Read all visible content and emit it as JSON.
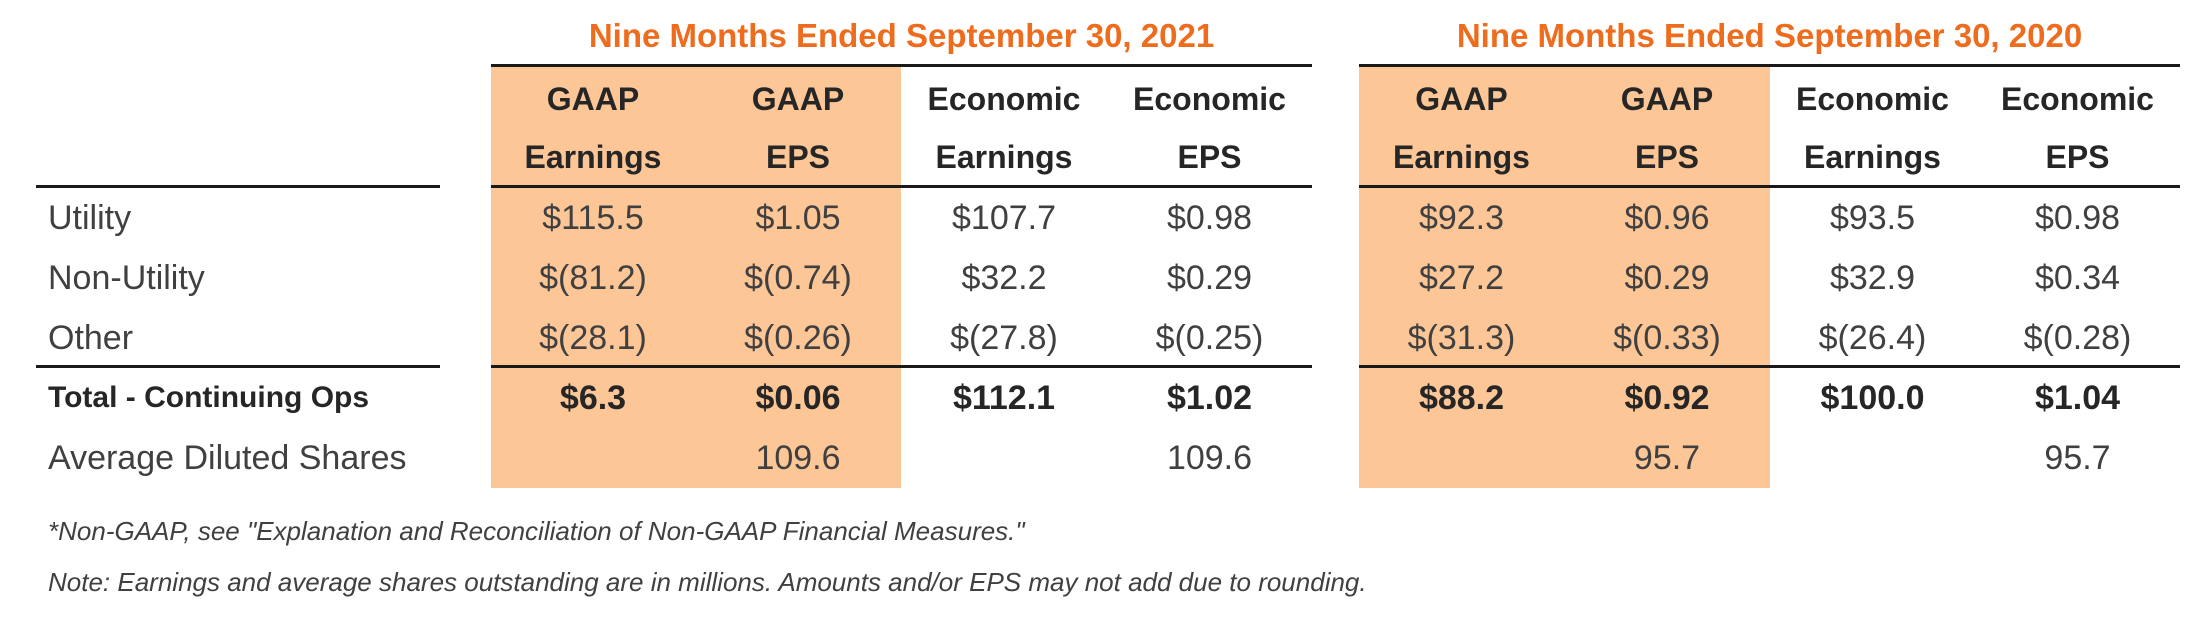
{
  "periods": [
    {
      "title": "Nine Months Ended September 30, 2021",
      "columns": [
        {
          "line1": "GAAP",
          "line2": "Earnings"
        },
        {
          "line1": "GAAP",
          "line2": "EPS"
        },
        {
          "line1": "Economic",
          "line2": "Earnings"
        },
        {
          "line1": "Economic",
          "line2": "EPS"
        }
      ]
    },
    {
      "title": "Nine Months Ended September 30, 2020",
      "columns": [
        {
          "line1": "GAAP",
          "line2": "Earnings"
        },
        {
          "line1": "GAAP",
          "line2": "EPS"
        },
        {
          "line1": "Economic",
          "line2": "Earnings"
        },
        {
          "line1": "Economic",
          "line2": "EPS"
        }
      ]
    }
  ],
  "rows": [
    {
      "label": "Utility",
      "bold": false,
      "values": [
        "$115.5",
        "$1.05",
        "$107.7",
        "$0.98",
        "$92.3",
        "$0.96",
        "$93.5",
        "$0.98"
      ]
    },
    {
      "label": "Non-Utility",
      "bold": false,
      "values": [
        "$(81.2)",
        "$(0.74)",
        "$32.2",
        "$0.29",
        "$27.2",
        "$0.29",
        "$32.9",
        "$0.34"
      ]
    },
    {
      "label": "Other",
      "bold": false,
      "values": [
        "$(28.1)",
        "$(0.26)",
        "$(27.8)",
        "$(0.25)",
        "$(31.3)",
        "$(0.33)",
        "$(26.4)",
        "$(0.28)"
      ]
    },
    {
      "label": "Total - Continuing Ops",
      "bold": true,
      "values": [
        "$6.3",
        "$0.06",
        "$112.1",
        "$1.02",
        "$88.2",
        "$0.92",
        "$100.0",
        "$1.04"
      ]
    },
    {
      "label": "Average Diluted Shares",
      "bold": false,
      "values": [
        "",
        "109.6",
        "",
        "109.6",
        "",
        "95.7",
        "",
        "95.7"
      ]
    }
  ],
  "footnotes": {
    "non_gaap": "*Non-GAAP, see \"Explanation and Reconciliation of Non-GAAP Financial Measures.\"",
    "note": "Note: Earnings and average shares outstanding are in millions. Amounts and/or EPS may not add due to rounding."
  },
  "colors": {
    "title_orange": "#ee6c1d",
    "shade": "#fdc697",
    "rule": "#1a1a1a",
    "text": "#404040"
  }
}
